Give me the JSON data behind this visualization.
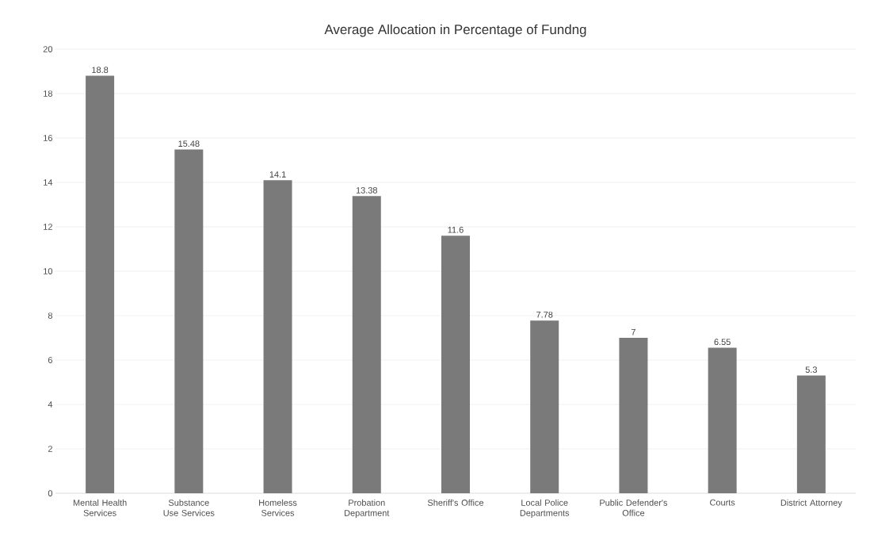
{
  "chart_data": {
    "type": "bar",
    "title": "Average Allocation in Percentage of Fundng",
    "categories": [
      "Mental Health Services",
      "Substance Use Services",
      "Homeless Services",
      "Probation Department",
      "Sheriff's Office",
      "Local Police Departments",
      "Public Defender's Office",
      "Courts",
      "District Attorney"
    ],
    "values": [
      18.8,
      15.48,
      14.1,
      13.38,
      11.6,
      7.78,
      7,
      6.55,
      5.3
    ],
    "color": "#7a7a7a",
    "ylim": [
      0,
      20
    ],
    "yticks": [
      0,
      2,
      4,
      6,
      8,
      10,
      12,
      14,
      16,
      18,
      20
    ],
    "grid": "y",
    "data_labels": true
  }
}
